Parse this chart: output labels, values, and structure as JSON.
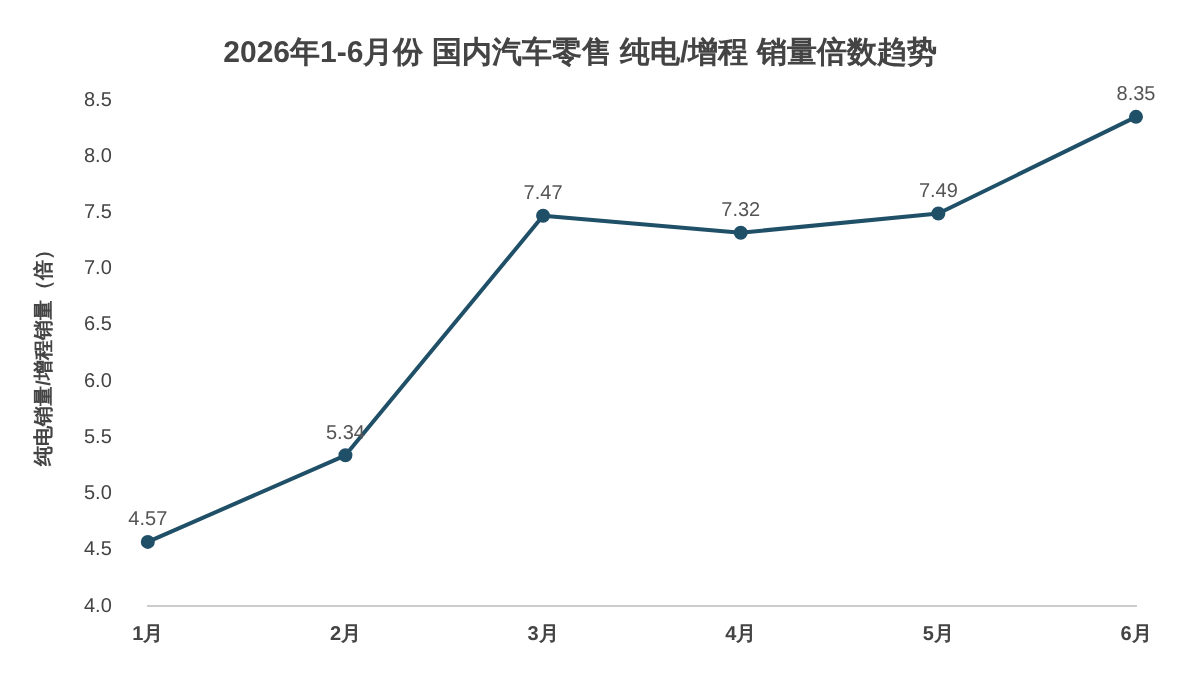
{
  "chart_data": {
    "type": "line",
    "title": "2026年1-6月份 国内汽车零售 纯电/增程 销量倍数趋势",
    "ylabel": "纯电销量/增程销量（倍）",
    "categories": [
      "1月",
      "2月",
      "3月",
      "4月",
      "5月",
      "6月"
    ],
    "series": [
      {
        "color": "#1f5068",
        "values": [
          4.57,
          5.34,
          7.47,
          7.32,
          7.49,
          8.35
        ]
      }
    ],
    "ylim": [
      4.0,
      8.5
    ],
    "yticks": [
      {
        "value": 4,
        "label": "4.0"
      },
      4.5,
      {
        "value": 5,
        "label": "5.0"
      },
      5.5,
      {
        "value": 6,
        "label": "6.0"
      },
      6.5,
      {
        "value": 7,
        "label": "7.0"
      },
      7.5,
      {
        "value": 8,
        "label": "8.0"
      },
      8.5
    ],
    "data_labels": true,
    "marker": "circle",
    "line_style": "solid",
    "grid": false,
    "legend": false
  }
}
